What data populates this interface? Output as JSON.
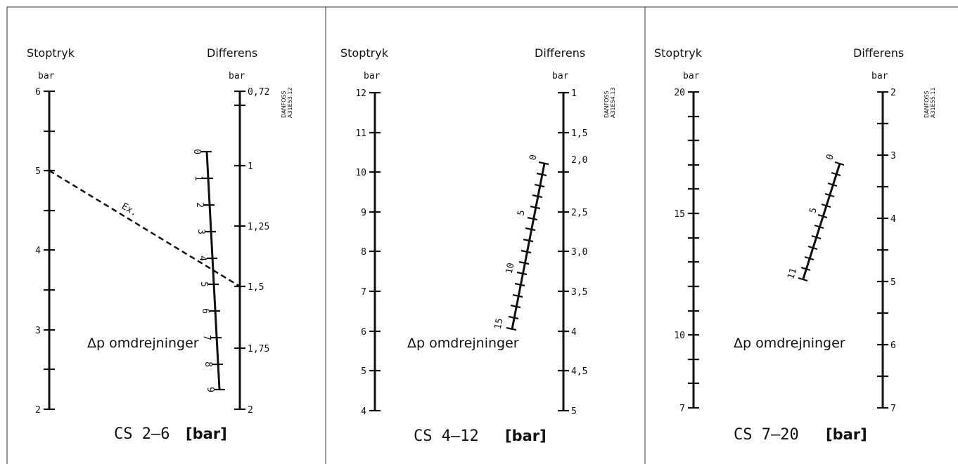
{
  "panels": [
    {
      "stop_label": "Stoptryk",
      "diff_label": "Differens",
      "stop_unit": "bar",
      "diff_unit": "bar",
      "stop_ticks": [
        "6",
        "5",
        "4",
        "3",
        "2"
      ],
      "diff_ticks": [
        "0,72",
        "1",
        "1,25",
        "1,5",
        "1,75",
        "2"
      ],
      "rev_ticks": [
        "0",
        "1",
        "2",
        "3",
        "4",
        "5",
        "6",
        "7",
        "8",
        "9"
      ],
      "dp_label": "Δp omdrejninger",
      "ex_label": "Ex.",
      "code_line1": "DANFOSS",
      "code_line2": "A31E53.12",
      "caption_model": "CS 2–6",
      "caption_unit": "[bar]"
    },
    {
      "stop_label": "Stoptryk",
      "diff_label": "Differens",
      "stop_unit": "bar",
      "diff_unit": "bar",
      "stop_ticks": [
        "12",
        "11",
        "10",
        "9",
        "8",
        "7",
        "6",
        "5",
        "4"
      ],
      "diff_ticks": [
        "1",
        "1,5",
        "2,0",
        "2,5",
        "3,0",
        "3,5",
        "4",
        "4,5",
        "5"
      ],
      "rev_ticks": [
        "0",
        "5",
        "10",
        "15"
      ],
      "dp_label": "Δp omdrejninger",
      "code_line1": "DANFOSS",
      "code_line2": "A31E54.13",
      "caption_model": "CS 4–12",
      "caption_unit": "[bar]"
    },
    {
      "stop_label": "Stoptryk",
      "diff_label": "Differens",
      "stop_unit": "bar",
      "diff_unit": "bar",
      "stop_ticks": [
        "20",
        "15",
        "10",
        "7"
      ],
      "diff_ticks": [
        "2",
        "3",
        "4",
        "5",
        "6",
        "7"
      ],
      "rev_ticks": [
        "0",
        "5",
        "11"
      ],
      "dp_label": "Δp omdrejninger",
      "code_line1": "DANFOSS",
      "code_line2": "A31E55.11",
      "caption_model": "CS 7–20",
      "caption_unit": "[bar]"
    }
  ]
}
